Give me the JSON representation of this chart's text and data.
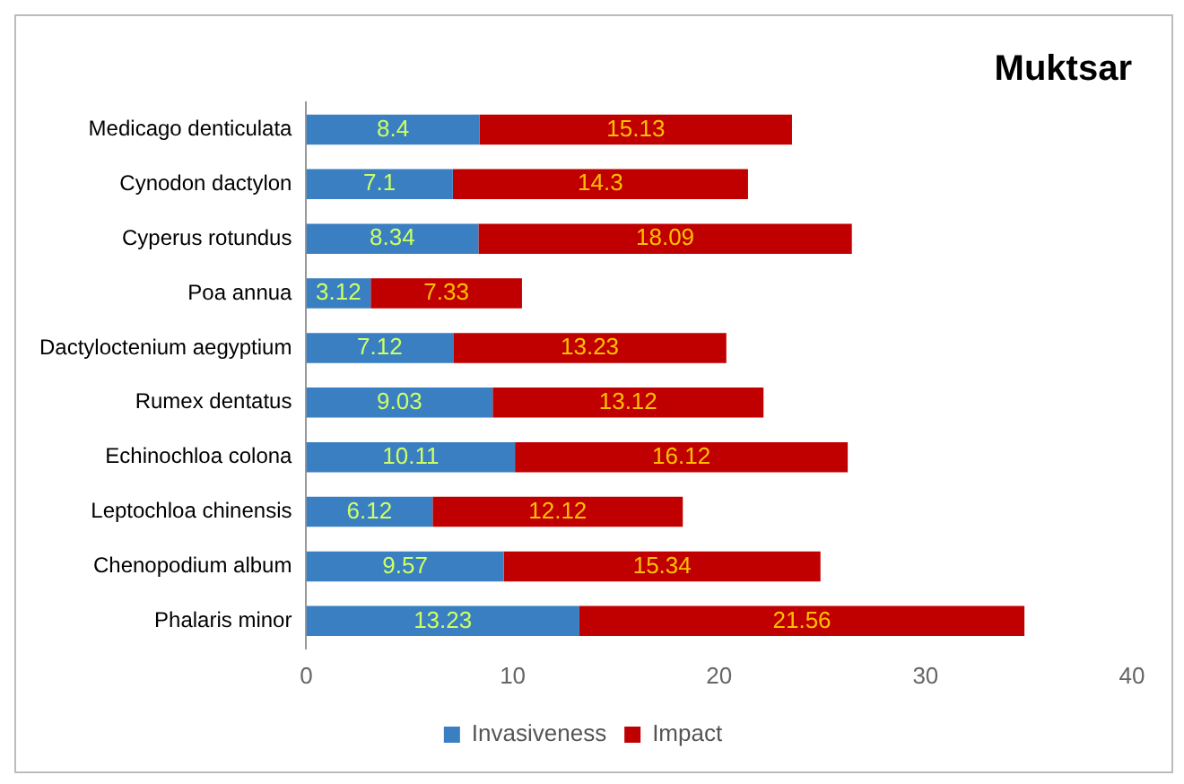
{
  "chart_data": {
    "type": "bar",
    "orientation": "horizontal",
    "stacked": true,
    "title": "Muktsar",
    "categories": [
      "Medicago denticulata",
      "Cynodon dactylon",
      "Cyperus rotundus",
      "Poa annua",
      "Dactyloctenium aegyptium",
      "Rumex dentatus",
      "Echinochloa colona",
      "Leptochloa chinensis",
      "Chenopodium album",
      "Phalaris minor"
    ],
    "series": [
      {
        "name": "Invasiveness",
        "color": "#3a7fc1",
        "values": [
          8.4,
          7.1,
          8.34,
          3.12,
          7.12,
          9.03,
          10.11,
          6.12,
          9.57,
          13.23
        ]
      },
      {
        "name": "Impact",
        "color": "#c00000",
        "values": [
          15.13,
          14.3,
          18.09,
          7.33,
          13.23,
          13.12,
          16.12,
          12.12,
          15.34,
          21.56
        ]
      }
    ],
    "xlim": [
      0,
      40
    ],
    "xticks": [
      0,
      10,
      20,
      30,
      40
    ],
    "grid": false,
    "legend": "bottom",
    "data_labels": true
  }
}
